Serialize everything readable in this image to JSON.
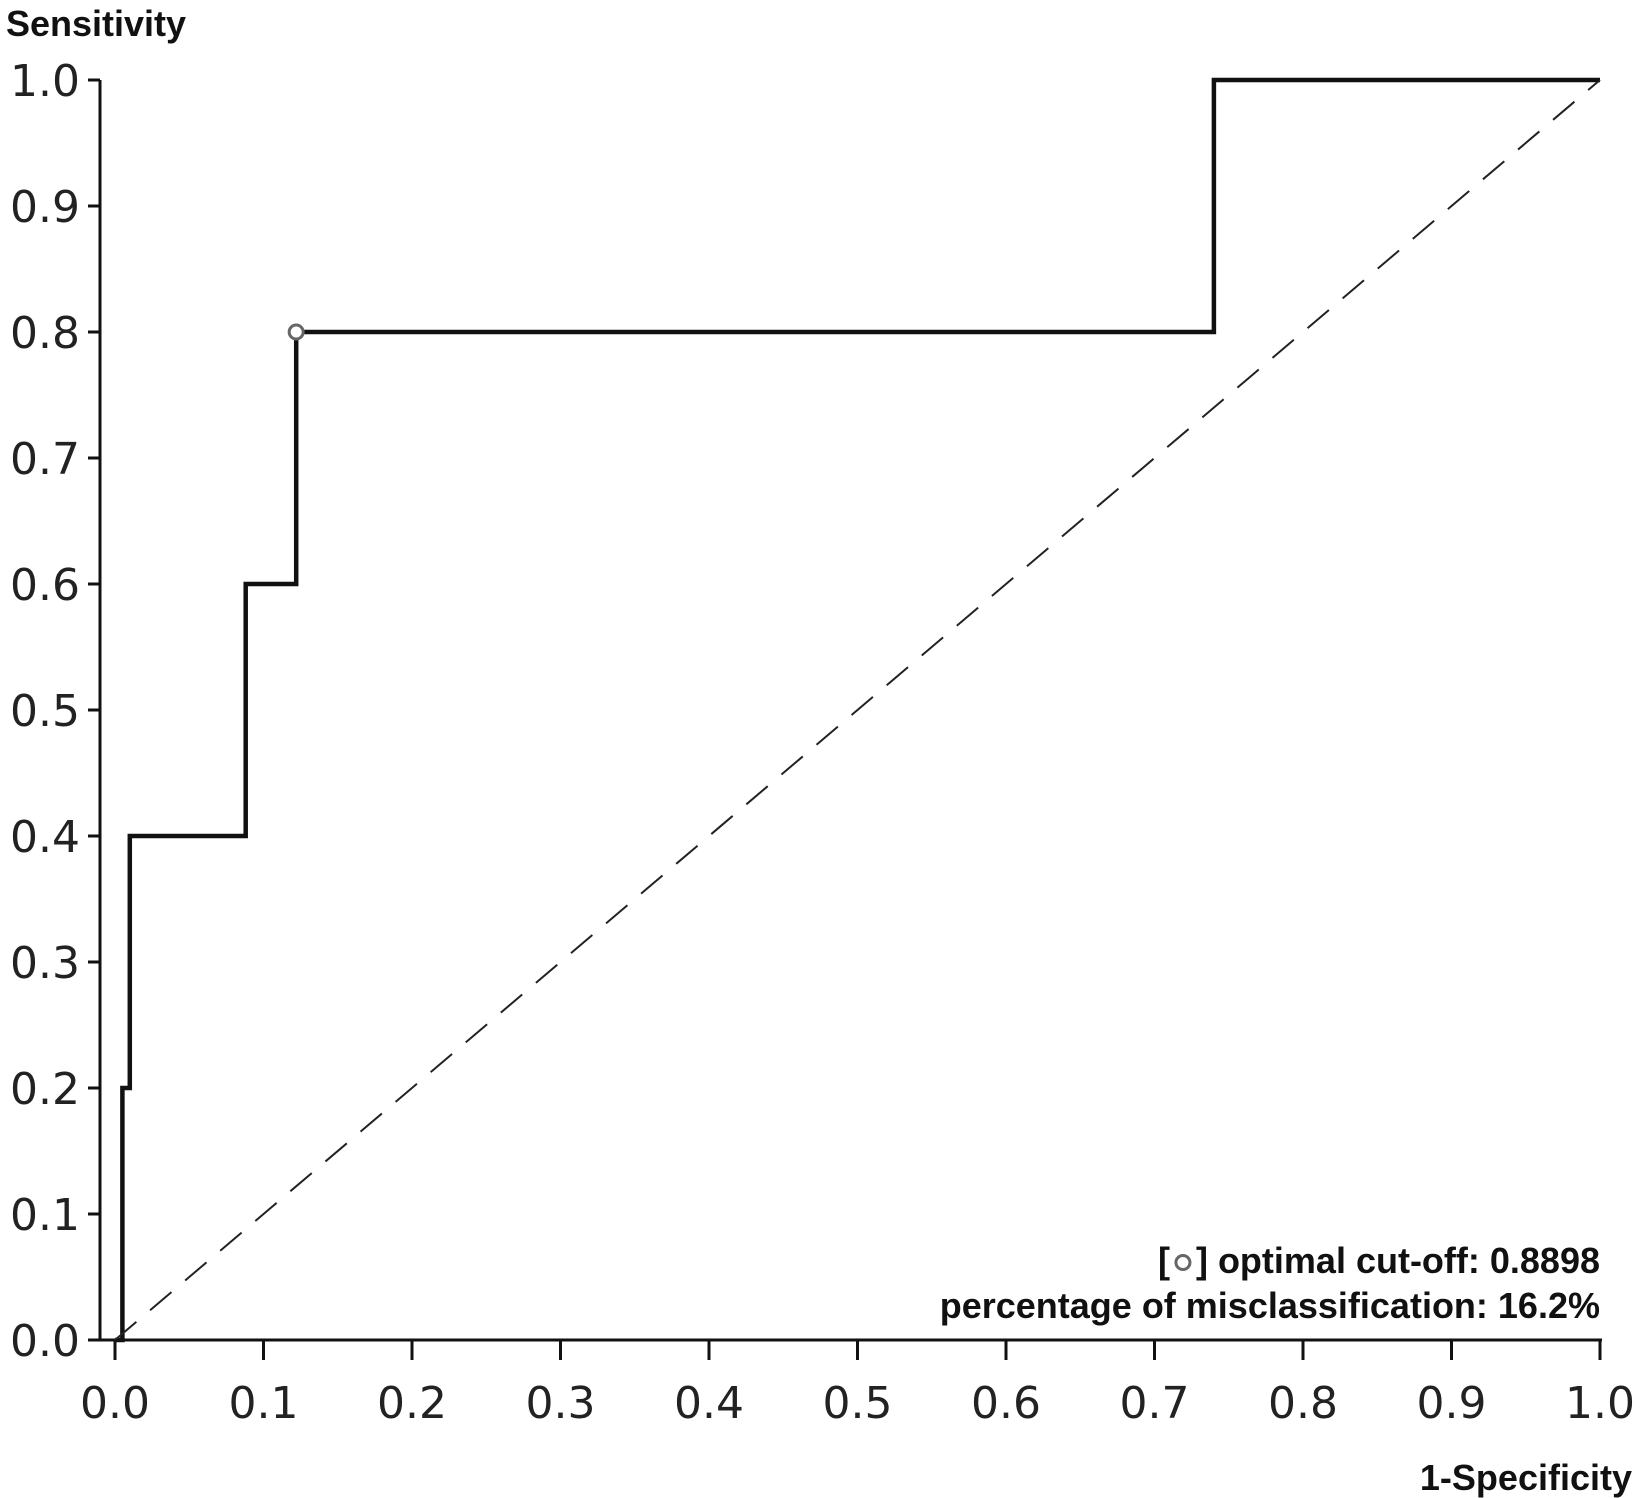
{
  "chart_data": {
    "type": "line",
    "ylabel": "Sensitivity",
    "xlabel": "1-Specificity",
    "xlim": [
      0,
      1
    ],
    "ylim": [
      0,
      1
    ],
    "x_ticks": [
      "0.0",
      "0.1",
      "0.2",
      "0.3",
      "0.4",
      "0.5",
      "0.6",
      "0.7",
      "0.8",
      "0.9",
      "1.0"
    ],
    "y_ticks": [
      "0.0",
      "0.1",
      "0.2",
      "0.3",
      "0.4",
      "0.5",
      "0.6",
      "0.7",
      "0.8",
      "0.9",
      "1.0"
    ],
    "grid": false,
    "series": [
      {
        "style": "solid",
        "x": [
          0.0,
          0.005,
          0.005,
          0.01,
          0.01,
          0.088,
          0.088,
          0.122,
          0.122,
          0.74,
          0.74,
          1.0
        ],
        "y": [
          0.0,
          0.0,
          0.2,
          0.2,
          0.4,
          0.4,
          0.6,
          0.6,
          0.8,
          0.8,
          1.0,
          1.0
        ]
      },
      {
        "style": "dashed",
        "x": [
          0.0,
          1.0
        ],
        "y": [
          0.0,
          1.0
        ]
      }
    ],
    "optimal_point": {
      "x": 0.122,
      "y": 0.8
    },
    "annotations": {
      "marker_prefix": "[",
      "marker_suffix": "]",
      "cutoff": "optimal cut-off: 0.8898",
      "misclassification": "percentage of misclassification: 16.2%"
    }
  }
}
